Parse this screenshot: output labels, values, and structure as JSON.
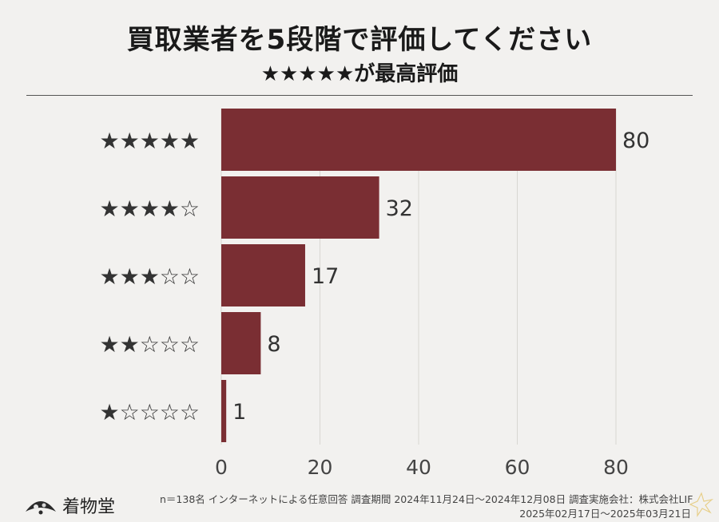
{
  "header": {
    "title": "買取業者を5段階で評価してください",
    "subtitle": "★★★★★が最高評価"
  },
  "chart_data": {
    "type": "bar",
    "orientation": "horizontal",
    "categories": [
      "★★★★★",
      "★★★★☆",
      "★★★☆☆",
      "★★☆☆☆",
      "★☆☆☆☆"
    ],
    "values": [
      80,
      32,
      17,
      8,
      1
    ],
    "xlim": [
      0,
      80
    ],
    "x_ticks": [
      0,
      20,
      40,
      60,
      80
    ],
    "bar_color": "#7a2e33",
    "grid": true
  },
  "footer": {
    "logo_text": "着物堂",
    "note_line1": "n＝138名 インターネットによる任意回答 調査期間 2024年11月24日～2024年12月08日 調査実施会社：株式会社LIF",
    "note_line2": "2025年02月17日～2025年03月21日"
  }
}
